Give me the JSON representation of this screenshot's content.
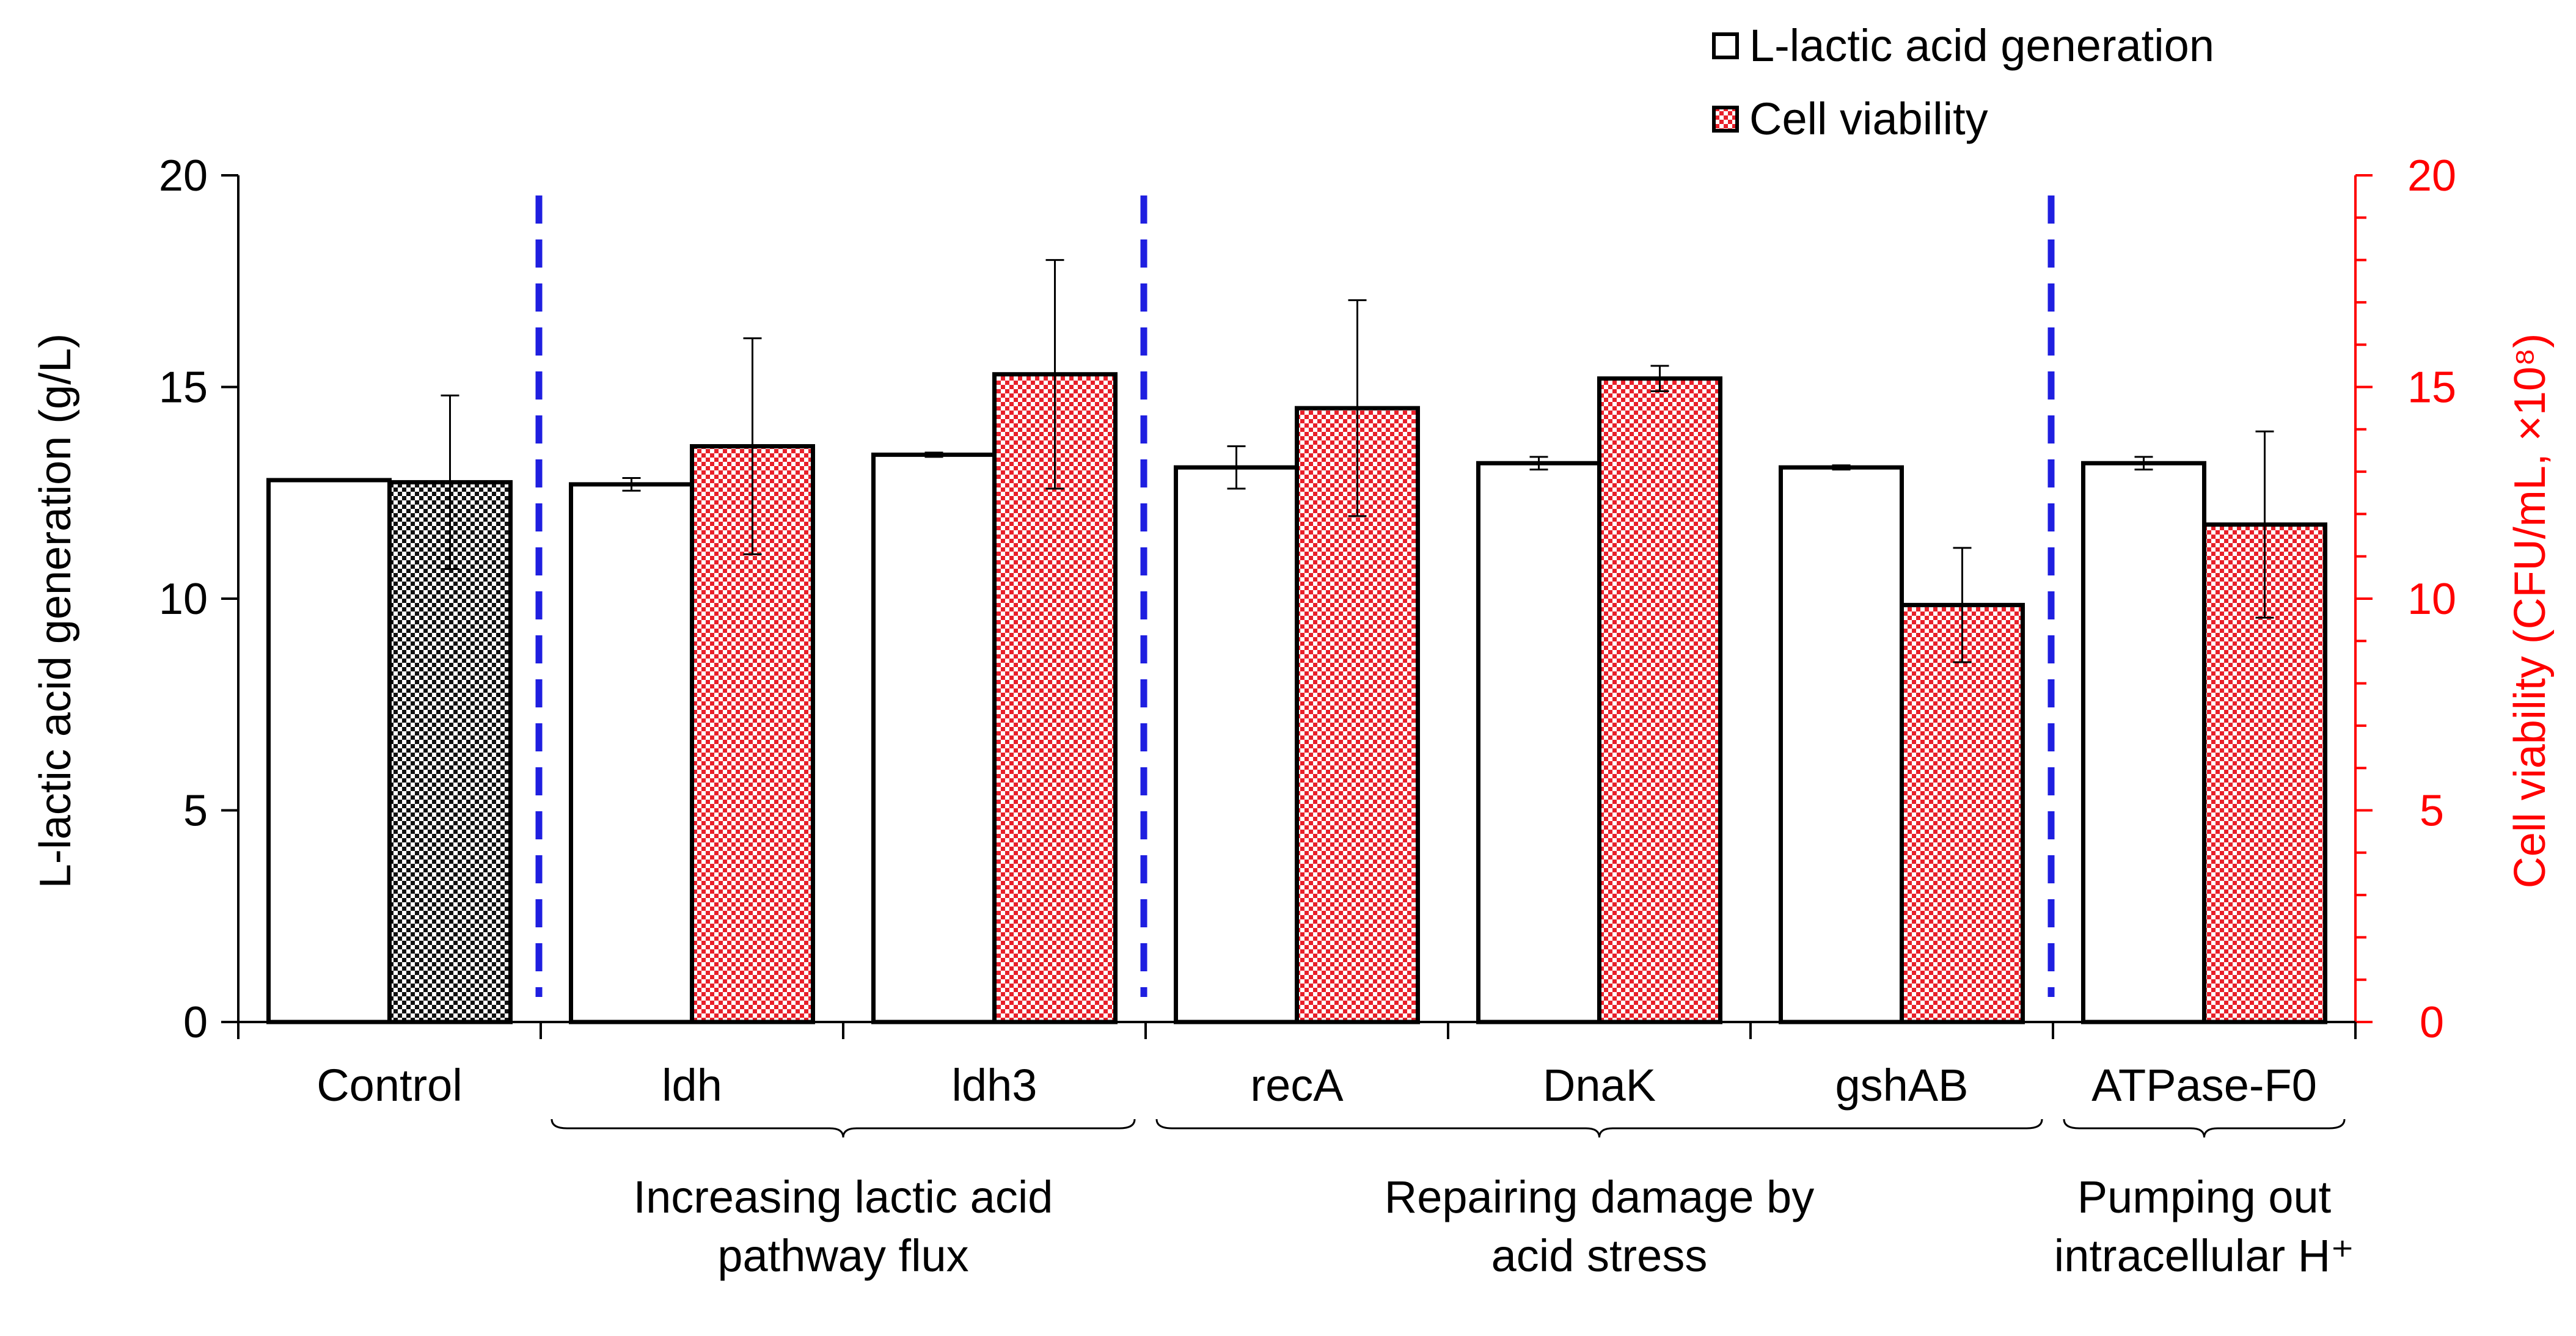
{
  "chart_data": {
    "type": "bar",
    "title": "",
    "categories": [
      "Control",
      "ldh",
      "ldh3",
      "recA",
      "DnaK",
      "gshAB",
      "ATPase-F0"
    ],
    "ylabel_left": "L-lactic acid generation (g/L)",
    "ylabel_right": "Cell viability (CFU/mL, ×10⁸)",
    "ylim_left": [
      0,
      20
    ],
    "ylim_right": [
      0,
      20
    ],
    "yticks_left": [
      "0",
      "5",
      "10",
      "15",
      "20"
    ],
    "yticks_right": [
      "0",
      "5",
      "10",
      "15",
      "20"
    ],
    "series": [
      {
        "name": "L-lactic acid generation",
        "axis": "left",
        "values": [
          12.8,
          12.7,
          13.4,
          13.1,
          13.2,
          13.1,
          13.2
        ],
        "errors": [
          0.0,
          0.15,
          0.05,
          0.5,
          0.15,
          0.05,
          0.15
        ]
      },
      {
        "name": "Cell viability",
        "axis": "right",
        "values": [
          12.75,
          13.6,
          15.3,
          14.5,
          15.2,
          9.85,
          11.75
        ],
        "errors": [
          2.05,
          2.55,
          2.7,
          2.55,
          0.3,
          1.35,
          2.2
        ]
      }
    ],
    "groups": [
      {
        "label_lines": [
          "Increasing lactic acid",
          "pathway flux"
        ],
        "from": 1,
        "to": 2
      },
      {
        "label_lines": [
          "Repairing damage by",
          "acid stress"
        ],
        "from": 3,
        "to": 5
      },
      {
        "label_lines": [
          "Pumping out",
          "intracellular H⁺"
        ],
        "from": 6,
        "to": 6
      }
    ],
    "dividers_after": [
      0,
      2,
      5
    ],
    "legend": [
      "L-lactic acid generation",
      "Cell viability"
    ],
    "legend_position": "top-right"
  },
  "colors": {
    "axis": "#000000",
    "right_axis": "#ff0000",
    "divider": "#1f1fe0",
    "bar_fill": "#ffffff",
    "hatch_red": "#e8202a",
    "hatch_black": "#000000"
  }
}
